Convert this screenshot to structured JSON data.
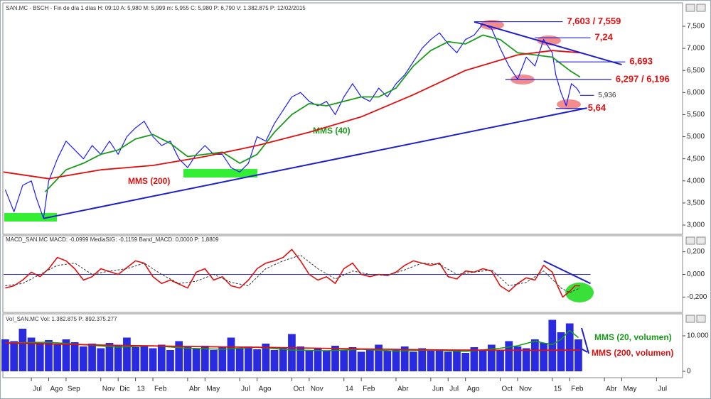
{
  "chart_data": [
    {
      "type": "line",
      "header": "SAN.MC - BSCH - Fin de día 1 días H: 09:10 A: 5,980 M: 5,999 m: 5,955 C: 5,980 P: 6,790 V: 1.382.875 P: 12/02/2015",
      "xlim": [
        -0.6,
        38.5
      ],
      "ylim": [
        2.823,
        7.966
      ],
      "yticks": [
        {
          "value": 3,
          "label": "3,000"
        },
        {
          "value": 3.5,
          "label": "3,500"
        },
        {
          "value": 4,
          "label": "4,000"
        },
        {
          "value": 4.5,
          "label": "4,500"
        },
        {
          "value": 5,
          "label": "5,000"
        },
        {
          "value": 5.5,
          "label": "5,500"
        },
        {
          "value": 6,
          "label": "6,000"
        },
        {
          "value": 6.5,
          "label": "6,500"
        },
        {
          "value": 7,
          "label": "7,000"
        },
        {
          "value": 7.5,
          "label": "7,500"
        }
      ],
      "xticks": [
        {
          "value": 1,
          "label": "Jul"
        },
        {
          "value": 2,
          "label": "Ago"
        },
        {
          "value": 3,
          "label": "Sep"
        },
        {
          "value": 5,
          "label": "Nov"
        },
        {
          "value": 6,
          "label": "Dic"
        },
        {
          "value": 7,
          "label": "13"
        },
        {
          "value": 8,
          "label": "Feb"
        },
        {
          "value": 10,
          "label": "Abr"
        },
        {
          "value": 11,
          "label": "May"
        },
        {
          "value": 13,
          "label": "Jul"
        },
        {
          "value": 14,
          "label": "Ago"
        },
        {
          "value": 16,
          "label": "Oct"
        },
        {
          "value": 17,
          "label": "Nov"
        },
        {
          "value": 19,
          "label": "14"
        },
        {
          "value": 20,
          "label": "Feb"
        },
        {
          "value": 22,
          "label": "Abr"
        },
        {
          "value": 24,
          "label": "Jun"
        },
        {
          "value": 25,
          "label": "Jul"
        },
        {
          "value": 26,
          "label": "Ago"
        },
        {
          "value": 28,
          "label": "Oct"
        },
        {
          "value": 29,
          "label": "Nov"
        },
        {
          "value": 31,
          "label": "15"
        },
        {
          "value": 32,
          "label": "Feb"
        },
        {
          "value": 34,
          "label": "Abr"
        },
        {
          "value": 35,
          "label": "May"
        },
        {
          "value": 37,
          "label": "Jul"
        }
      ],
      "series": [
        {
          "color": "#1a1aff",
          "width": 1.2,
          "x": [
            -0.5,
            0,
            0.5,
            1,
            1.3,
            1.7,
            2,
            2.5,
            3,
            3.5,
            4,
            4.5,
            5,
            5.5,
            6,
            6.5,
            7,
            7.5,
            8,
            8.5,
            9,
            9.5,
            10,
            10.5,
            11,
            11.5,
            12,
            12.5,
            13,
            13.5,
            14,
            14.5,
            15,
            15.5,
            16,
            16.5,
            17,
            17.5,
            18,
            18.5,
            19,
            19.5,
            20,
            20.5,
            21,
            21.5,
            22,
            22.5,
            23,
            23.5,
            24,
            24.5,
            25,
            25.5,
            26,
            26.5,
            27,
            27.5,
            28,
            28.5,
            29,
            29.5,
            30,
            30.5,
            31,
            31.2,
            31.5,
            31.8,
            32.1,
            32.4,
            32.6
          ],
          "values": [
            3.8,
            3.3,
            3.9,
            4.0,
            3.6,
            3.15,
            4.0,
            4.5,
            4.9,
            4.7,
            4.5,
            4.8,
            4.6,
            4.9,
            4.6,
            5.0,
            5.2,
            5.35,
            5.0,
            4.8,
            4.9,
            4.5,
            4.3,
            4.6,
            4.8,
            4.6,
            4.6,
            4.3,
            4.2,
            4.4,
            5.0,
            4.9,
            5.3,
            5.6,
            5.9,
            6.0,
            5.8,
            5.7,
            5.8,
            5.5,
            5.9,
            6.2,
            5.9,
            5.8,
            6.1,
            5.9,
            6.2,
            6.4,
            6.7,
            7.0,
            7.2,
            7.35,
            7.1,
            6.9,
            7.2,
            7.3,
            7.55,
            7.45,
            7.0,
            6.6,
            6.3,
            6.8,
            6.6,
            7.2,
            6.9,
            6.4,
            6.0,
            5.7,
            6.2,
            6.1,
            5.98
          ]
        },
        {
          "name": "MMS (40)",
          "color": "#1a9a1a",
          "width": 1.8,
          "x": [
            1.8,
            3,
            4,
            5,
            6,
            7,
            8,
            9,
            10,
            11,
            12,
            13,
            14,
            15,
            16,
            17,
            18,
            19,
            20,
            21,
            22,
            23,
            24,
            25,
            26,
            27,
            28,
            29,
            30,
            31,
            32,
            32.6
          ],
          "values": [
            3.75,
            4.25,
            4.4,
            4.6,
            4.7,
            4.95,
            5.05,
            4.85,
            4.55,
            4.6,
            4.65,
            4.4,
            4.6,
            5.1,
            5.5,
            5.75,
            5.7,
            5.8,
            5.9,
            5.9,
            6.1,
            6.6,
            6.95,
            7.15,
            7.1,
            7.3,
            7.2,
            6.9,
            6.85,
            6.8,
            6.5,
            6.35
          ]
        },
        {
          "name": "MMS (200)",
          "color": "#e01010",
          "width": 1.8,
          "x": [
            -0.6,
            2,
            5,
            8,
            11,
            14,
            17,
            20,
            23,
            26,
            29,
            31,
            32.6
          ],
          "values": [
            4.2,
            4.05,
            4.25,
            4.35,
            4.55,
            4.8,
            5.1,
            5.45,
            5.95,
            6.5,
            6.85,
            6.95,
            6.9
          ]
        }
      ],
      "trendlines": [
        {
          "color": "#2020c8",
          "x": [
            1.7,
            33.0
          ],
          "values": [
            3.15,
            5.65
          ]
        },
        {
          "color": "#2020c8",
          "x": [
            26.5,
            35.0
          ],
          "values": [
            7.6,
            6.63
          ]
        }
      ],
      "levels": [
        {
          "value": 7.603,
          "label": "7,603 / 7,559",
          "color": "#e01010",
          "x": [
            26.5,
            31.6
          ]
        },
        {
          "value": 7.24,
          "label": "7,24",
          "color": "#e01010",
          "x": [
            30.0,
            33.2
          ]
        },
        {
          "value": 6.693,
          "label": "6,693",
          "color": "#e01010",
          "x": [
            31.2,
            35.2
          ]
        },
        {
          "value": 6.297,
          "label": "6,297 / 6,196",
          "color": "#e01010",
          "x": [
            28.3,
            34.4
          ]
        },
        {
          "value": 5.936,
          "label": "5,936",
          "color": "#333333",
          "x": [
            32.6,
            33.4
          ]
        },
        {
          "value": 5.64,
          "label": "5,64",
          "color": "#e01010",
          "x": [
            31.2,
            32.8
          ]
        }
      ]
    },
    {
      "type": "line",
      "header": "MACD_SAN.MC MACD: -0,0999 MediaSIG: -0,1159 Band_MACD: 0,0000 P: 1,8809",
      "xlim": [
        -0.6,
        38.5
      ],
      "ylim": [
        -0.335,
        0.329
      ],
      "yticks": [
        {
          "value": 0.2,
          "label": "0,200"
        },
        {
          "value": 0,
          "label": "0,000"
        },
        {
          "value": -0.2,
          "label": "-0,200"
        }
      ],
      "zero_line": true,
      "series": [
        {
          "color": "#e01010",
          "width": 1.6,
          "x": [
            -0.5,
            0,
            0.5,
            1,
            1.5,
            2,
            2.5,
            3,
            3.5,
            4,
            4.5,
            5,
            6,
            7,
            7.5,
            8,
            8.5,
            9,
            10,
            10.5,
            11,
            11.5,
            12,
            12.5,
            13,
            13.5,
            14,
            14.5,
            15,
            15.5,
            16,
            16.5,
            17,
            17.5,
            18,
            18.5,
            19,
            19.5,
            20,
            20.5,
            21,
            21.5,
            22,
            22.5,
            23,
            23.5,
            24,
            24.5,
            25,
            25.5,
            26,
            26.5,
            27,
            27.5,
            28,
            28.5,
            29,
            29.5,
            30,
            30.5,
            31,
            31.3,
            31.6,
            32,
            32.3,
            32.6
          ],
          "values": [
            -0.12,
            -0.1,
            -0.05,
            0.02,
            -0.02,
            0.05,
            0.15,
            0.12,
            0.05,
            -0.05,
            -0.02,
            0.05,
            0.0,
            0.12,
            0.1,
            -0.02,
            -0.08,
            -0.05,
            -0.12,
            0.02,
            0.05,
            -0.05,
            -0.02,
            -0.1,
            -0.12,
            -0.05,
            0.05,
            0.1,
            0.12,
            0.15,
            0.22,
            0.12,
            0.0,
            -0.05,
            -0.02,
            -0.08,
            0.05,
            0.1,
            0.0,
            -0.02,
            0.0,
            -0.01,
            0.02,
            0.08,
            0.12,
            0.1,
            0.08,
            0.1,
            -0.02,
            -0.04,
            0.03,
            0.02,
            0.05,
            0.03,
            -0.1,
            -0.15,
            -0.08,
            -0.03,
            -0.05,
            0.08,
            0.02,
            -0.1,
            -0.2,
            -0.15,
            -0.1,
            -0.1
          ]
        },
        {
          "color": "#333333",
          "width": 1,
          "dashed": true,
          "x": [
            -0.5,
            0.5,
            1.5,
            2.5,
            3.5,
            4.5,
            5.5,
            6.5,
            7.5,
            8.5,
            9.5,
            10.5,
            11.5,
            12.5,
            13.5,
            14.5,
            15.5,
            16.5,
            17.5,
            18.5,
            19.5,
            20.5,
            21.5,
            22.5,
            23.5,
            24.5,
            25.5,
            26.5,
            27.5,
            28.5,
            29.5,
            30.5,
            31.5,
            32,
            32.6
          ],
          "values": [
            -0.1,
            -0.08,
            0.0,
            0.08,
            0.1,
            0.0,
            0.03,
            0.05,
            0.1,
            0.0,
            -0.08,
            -0.06,
            0.0,
            -0.07,
            -0.1,
            0.05,
            0.12,
            0.17,
            0.05,
            -0.04,
            0.03,
            0.0,
            -0.01,
            0.04,
            0.1,
            0.09,
            0.0,
            0.02,
            0.04,
            -0.1,
            -0.07,
            0.03,
            -0.12,
            -0.16,
            -0.12
          ]
        }
      ],
      "trendlines": [
        {
          "color": "#2020c8",
          "x": [
            30.5,
            33.2
          ],
          "values": [
            0.12,
            -0.08
          ]
        }
      ]
    },
    {
      "type": "bar",
      "header": "Vol_SAN.MC Vol: 1.382.875 P: 892.375.277",
      "xlim": [
        -0.6,
        38.5
      ],
      "ylim": [
        -1400,
        15400
      ],
      "yticks": [
        {
          "value": 10000,
          "label": "10.000"
        },
        0
      ],
      "color": "#2a2ae0",
      "x": [
        -0.5,
        0,
        0.5,
        1,
        1.5,
        2,
        2.5,
        3,
        3.5,
        4,
        4.5,
        5,
        5.5,
        6,
        6.5,
        7,
        7.5,
        8,
        8.5,
        9,
        9.5,
        10,
        10.5,
        11,
        11.5,
        12,
        12.5,
        13,
        13.5,
        14,
        14.5,
        15,
        15.5,
        16,
        16.5,
        17,
        17.5,
        18,
        18.5,
        19,
        19.5,
        20,
        20.5,
        21,
        21.5,
        22,
        22.5,
        23,
        23.5,
        24,
        24.5,
        25,
        25.5,
        26,
        26.5,
        27,
        27.5,
        28,
        28.5,
        29,
        29.5,
        30,
        30.5,
        31,
        31.5,
        32,
        32.5
      ],
      "values": [
        9000,
        8500,
        12000,
        9500,
        8000,
        8800,
        7500,
        9000,
        8200,
        7000,
        7800,
        6500,
        8000,
        7200,
        9500,
        6800,
        7000,
        6500,
        7500,
        6000,
        8500,
        7000,
        6500,
        7200,
        6000,
        6800,
        9500,
        6500,
        7000,
        6200,
        7800,
        6000,
        6500,
        10500,
        7000,
        6000,
        6500,
        5800,
        7200,
        6000,
        6800,
        5500,
        6200,
        7500,
        5800,
        6000,
        7000,
        5500,
        6500,
        5800,
        6200,
        5500,
        6000,
        5200,
        6800,
        5800,
        7500,
        6000,
        8500,
        7000,
        6500,
        9000,
        8000,
        14500,
        11000,
        13500,
        9000
      ],
      "series": [
        {
          "name": "MMS (20, volumen)",
          "color": "#1a9a1a",
          "width": 1.5,
          "x": [
            -0.5,
            2,
            4,
            6,
            8,
            10,
            12,
            14,
            16,
            18,
            20,
            22,
            24,
            26,
            28,
            29,
            30,
            31,
            31.5,
            32,
            32.5
          ],
          "values": [
            8000,
            8200,
            7500,
            6800,
            7200,
            6500,
            6200,
            6800,
            6000,
            5800,
            6200,
            5700,
            6000,
            5600,
            6500,
            7200,
            8500,
            7500,
            9000,
            11500,
            9500
          ]
        },
        {
          "name": "MMS (200, volumen)",
          "color": "#e01010",
          "width": 1.8,
          "x": [
            -0.5,
            5,
            10,
            15,
            20,
            25,
            30,
            32.6
          ],
          "values": [
            8000,
            7400,
            7000,
            6700,
            6300,
            6000,
            5900,
            6000
          ]
        }
      ]
    }
  ]
}
